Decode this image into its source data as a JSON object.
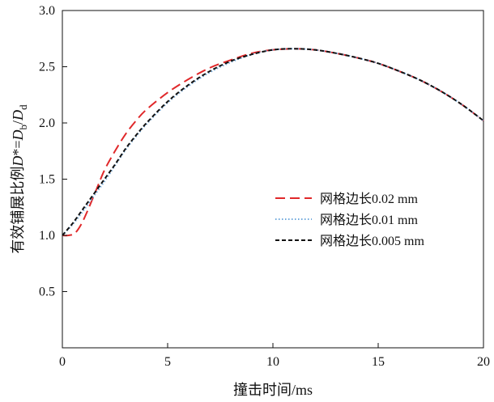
{
  "chart_data": {
    "type": "line",
    "title": "",
    "xlabel": "撞击时间/ms",
    "ylabel_parts": [
      {
        "text": "有效铺展比例",
        "italic": false,
        "sub": false
      },
      {
        "text": "D",
        "italic": true,
        "sub": false
      },
      {
        "text": "*=",
        "italic": false,
        "sub": false
      },
      {
        "text": "D",
        "italic": true,
        "sub": false
      },
      {
        "text": "b",
        "italic": false,
        "sub": true
      },
      {
        "text": "/",
        "italic": false,
        "sub": false
      },
      {
        "text": "D",
        "italic": true,
        "sub": false
      },
      {
        "text": "d",
        "italic": false,
        "sub": true
      }
    ],
    "xlim": [
      0,
      20
    ],
    "ylim": [
      0,
      3.0
    ],
    "xticks": [
      0,
      5,
      10,
      15,
      20
    ],
    "yticks": [
      0.5,
      1.0,
      1.5,
      2.0,
      2.5,
      3.0
    ],
    "ytick_labels": [
      "0.5",
      "1.0",
      "1.5",
      "2.0",
      "2.5",
      "3.0"
    ],
    "grid": false,
    "legend_position": "right-middle",
    "series": [
      {
        "name": "网格边长0.02 mm",
        "color": "#e0282a",
        "dash": "long-dash",
        "x": [
          0,
          0.3,
          0.6,
          0.9,
          1.2,
          1.6,
          2.0,
          2.5,
          3.0,
          3.5,
          4.0,
          5.0,
          6.0,
          7.0,
          8.0,
          9.0,
          10.0,
          11.0,
          12.0,
          13.0,
          14.0,
          15.0,
          16.0,
          17.0,
          18.0,
          19.0,
          20.0
        ],
        "y": [
          1.0,
          1.0,
          1.02,
          1.1,
          1.22,
          1.4,
          1.58,
          1.75,
          1.9,
          2.02,
          2.12,
          2.27,
          2.39,
          2.49,
          2.56,
          2.62,
          2.65,
          2.66,
          2.65,
          2.62,
          2.58,
          2.53,
          2.46,
          2.38,
          2.28,
          2.16,
          2.02
        ]
      },
      {
        "name": "网格边长0.01 mm",
        "color": "#6fa8dc",
        "dash": "dot",
        "x": [
          0,
          0.5,
          1.0,
          1.5,
          2.0,
          2.5,
          3.0,
          3.5,
          4.0,
          5.0,
          6.0,
          7.0,
          8.0,
          9.0,
          10.0,
          11.0,
          12.0,
          13.0,
          14.0,
          15.0,
          16.0,
          17.0,
          18.0,
          19.0,
          20.0
        ],
        "y": [
          1.0,
          1.1,
          1.22,
          1.35,
          1.48,
          1.62,
          1.76,
          1.88,
          1.99,
          2.18,
          2.33,
          2.45,
          2.54,
          2.61,
          2.65,
          2.66,
          2.65,
          2.62,
          2.58,
          2.53,
          2.46,
          2.38,
          2.28,
          2.16,
          2.02
        ]
      },
      {
        "name": "网格边长0.005 mm",
        "color": "#111111",
        "dash": "short-dash",
        "x": [
          0,
          0.5,
          1.0,
          1.5,
          2.0,
          2.5,
          3.0,
          3.5,
          4.0,
          5.0,
          6.0,
          7.0,
          8.0,
          9.0,
          10.0,
          11.0,
          12.0,
          13.0,
          14.0,
          15.0,
          16.0,
          17.0,
          18.0,
          19.0,
          20.0
        ],
        "y": [
          1.0,
          1.11,
          1.24,
          1.37,
          1.5,
          1.63,
          1.77,
          1.89,
          2.0,
          2.19,
          2.34,
          2.46,
          2.55,
          2.61,
          2.65,
          2.66,
          2.65,
          2.62,
          2.58,
          2.53,
          2.46,
          2.38,
          2.28,
          2.16,
          2.02
        ]
      }
    ]
  }
}
